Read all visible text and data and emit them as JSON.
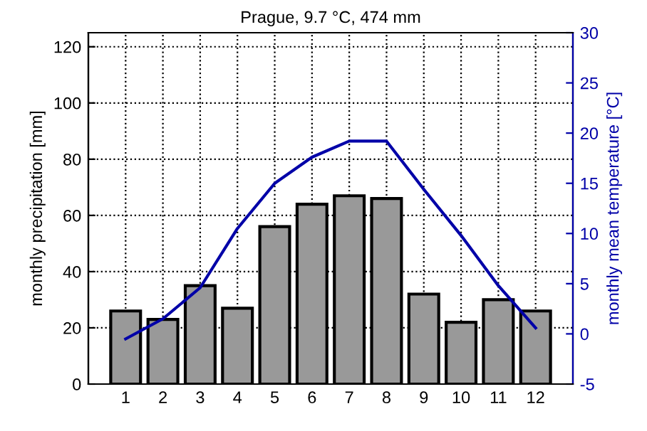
{
  "chart_data": {
    "type": "bar",
    "title": "Prague, 9.7 °C, 474 mm",
    "ylabel": "monthly precipitation [mm]",
    "y2label": "monthly mean temperature [°C]",
    "x": [
      1,
      2,
      3,
      4,
      5,
      6,
      7,
      8,
      9,
      10,
      11,
      12
    ],
    "series": [
      {
        "color": "#999999",
        "values": [
          26,
          23,
          35,
          27,
          56,
          64,
          67,
          66,
          32,
          22,
          30,
          26
        ]
      },
      {
        "type": "line",
        "axis": "y2",
        "color": "#0000a8",
        "values": [
          -0.5,
          1.5,
          4.6,
          10.5,
          15.0,
          17.6,
          19.2,
          19.2,
          14.4,
          9.8,
          4.8,
          0.6
        ]
      }
    ],
    "xlim": [
      0,
      13
    ],
    "xticks": [
      1,
      2,
      3,
      4,
      5,
      6,
      7,
      8,
      9,
      10,
      11,
      12
    ],
    "ylim": [
      0,
      125
    ],
    "yticks": [
      0,
      20,
      40,
      60,
      80,
      100,
      120
    ],
    "y2lim": [
      -5,
      30
    ],
    "y2ticks": [
      -5,
      0,
      5,
      10,
      15,
      20,
      25,
      30
    ],
    "grid": true,
    "line_style": "solid"
  }
}
